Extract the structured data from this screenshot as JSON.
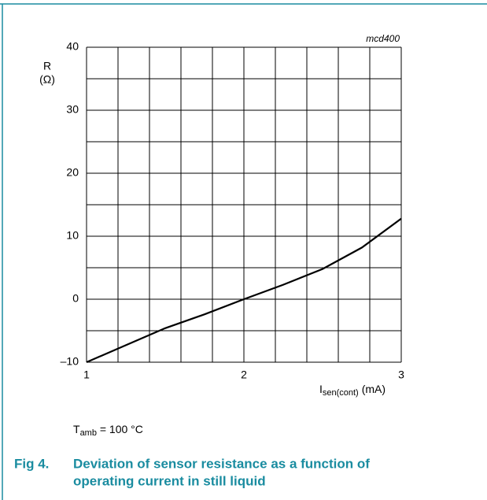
{
  "chart_data": {
    "type": "line",
    "code": "mcd400",
    "y_label": [
      "R",
      "(Ω)"
    ],
    "x_label": {
      "main": "I",
      "sub": "sen(cont)",
      "unit": "(mA)"
    },
    "note": {
      "main": "T",
      "sub": "amb",
      "rest": " = 100 °C"
    },
    "figure_number": "Fig 4.",
    "caption": [
      "Deviation of sensor resistance as a function of",
      "operating current in still liquid"
    ],
    "x": [
      1,
      1.25,
      1.5,
      1.75,
      2,
      2.25,
      2.5,
      2.75,
      3
    ],
    "series": [
      {
        "color": "#000000",
        "values": [
          -10,
          -7.3,
          -4.6,
          -2.4,
          0,
          2.3,
          4.8,
          8.2,
          12.8
        ]
      }
    ],
    "xlim": [
      1,
      3
    ],
    "xticks": [
      1,
      2,
      3
    ],
    "ylim": [
      -10,
      40
    ],
    "yticks": [
      {
        "value": -10,
        "label": "–10"
      },
      0,
      10,
      20,
      30,
      40
    ],
    "xgrid": [
      1.2,
      1.4,
      1.6,
      1.8,
      2.2,
      2.4,
      2.6,
      2.8
    ],
    "ygrid": [
      -5,
      5,
      15,
      25,
      35
    ],
    "grid": true
  }
}
